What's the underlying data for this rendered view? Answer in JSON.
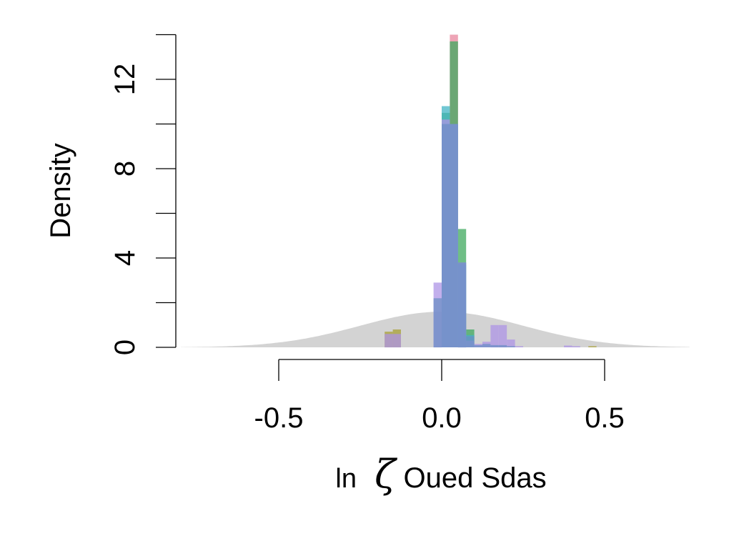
{
  "chart_data": {
    "type": "bar",
    "title": "",
    "xlabel": {
      "prefix": "ln",
      "symbol": "ζ",
      "subscript": "Oued Sdas"
    },
    "ylabel": "Density",
    "xlim": [
      -0.8,
      0.76
    ],
    "ylim": [
      0,
      14
    ],
    "x_ticks": [
      -0.5,
      0.0,
      0.5
    ],
    "x_tick_labels": [
      "-0.5",
      "0.0",
      "0.5"
    ],
    "y_ticks": [
      0,
      2,
      4,
      6,
      8,
      10,
      12,
      14
    ],
    "y_tick_labels": [
      {
        "value": 0,
        "label": "0"
      },
      {
        "value": 4,
        "label": "4"
      },
      {
        "value": 8,
        "label": "8"
      },
      {
        "value": 12,
        "label": "12"
      }
    ],
    "grid": false,
    "legend": "none",
    "bin_width": 0.025,
    "background_curve": {
      "kind": "normal-density",
      "mean": 0.0,
      "sd": 0.25,
      "color": "#d3d3d3"
    },
    "series": [
      {
        "color": "#E8859E",
        "values": [
          [
            0.025,
            14.0
          ]
        ]
      },
      {
        "color": "#A8A034",
        "values": [
          [
            -0.175,
            0.7
          ],
          [
            -0.15,
            0.8
          ],
          [
            0.45,
            0.05
          ]
        ]
      },
      {
        "color": "#3FA85E",
        "values": [
          [
            0.0,
            10.5
          ],
          [
            0.025,
            13.7
          ],
          [
            0.05,
            5.3
          ],
          [
            0.075,
            0.8
          ]
        ]
      },
      {
        "color": "#42B4C4",
        "values": [
          [
            0.0,
            10.8
          ],
          [
            0.025,
            10.0
          ],
          [
            0.05,
            3.7
          ],
          [
            0.075,
            0.55
          ]
        ]
      },
      {
        "color": "#AE94E6",
        "values": [
          [
            -0.175,
            0.6
          ],
          [
            -0.15,
            0.6
          ],
          [
            -0.025,
            2.9
          ],
          [
            0.0,
            10.2
          ],
          [
            0.025,
            10.0
          ],
          [
            0.05,
            3.8
          ],
          [
            0.075,
            0.3
          ],
          [
            0.1,
            0.15
          ],
          [
            0.125,
            0.25
          ],
          [
            0.15,
            1.0
          ],
          [
            0.175,
            1.0
          ],
          [
            0.2,
            0.35
          ],
          [
            0.225,
            0.05
          ],
          [
            0.375,
            0.08
          ],
          [
            0.4,
            0.05
          ]
        ]
      },
      {
        "color": "#6C8FC6",
        "values": [
          [
            -0.025,
            2.2
          ],
          [
            0.0,
            10.0
          ],
          [
            0.025,
            10.0
          ],
          [
            0.05,
            3.8
          ],
          [
            0.075,
            0.5
          ],
          [
            0.1,
            0.1
          ],
          [
            0.125,
            0.15
          ],
          [
            0.15,
            0.1
          ],
          [
            0.175,
            0.1
          ],
          [
            0.2,
            0.05
          ]
        ]
      }
    ]
  }
}
